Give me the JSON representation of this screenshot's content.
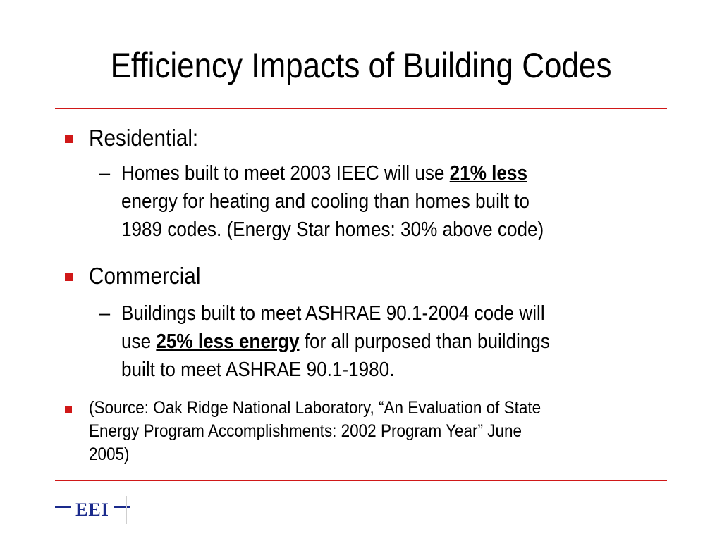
{
  "slide": {
    "title": "Efficiency Impacts of Building Codes",
    "accent_color": "#d01818",
    "residential": {
      "heading": "Residential:",
      "detail": {
        "pre": "Homes built to meet 2003 IEEC will use ",
        "emphasis": "21% less",
        "line2": "energy for heating and cooling than homes built to",
        "line3": "1989 codes. (Energy Star homes:  30% above code)"
      }
    },
    "commercial": {
      "heading": "Commercial",
      "detail": {
        "line1": "Buildings built to meet ASHRAE 90.1-2004 code will",
        "pre2": "use ",
        "emphasis": "25% less energy",
        "post2": " for all purposed than buildings",
        "line3": "built to meet ASHRAE 90.1-1980."
      }
    },
    "source": {
      "line1": "(Source:  Oak Ridge National Laboratory, “An Evaluation of State",
      "line2": "Energy Program Accomplishments:  2002 Program Year” June",
      "line3": "2005)"
    },
    "dash": "–",
    "logo": {
      "text": "EEI",
      "color": "#1a2a8c",
      "icon": "eei-logo"
    }
  }
}
